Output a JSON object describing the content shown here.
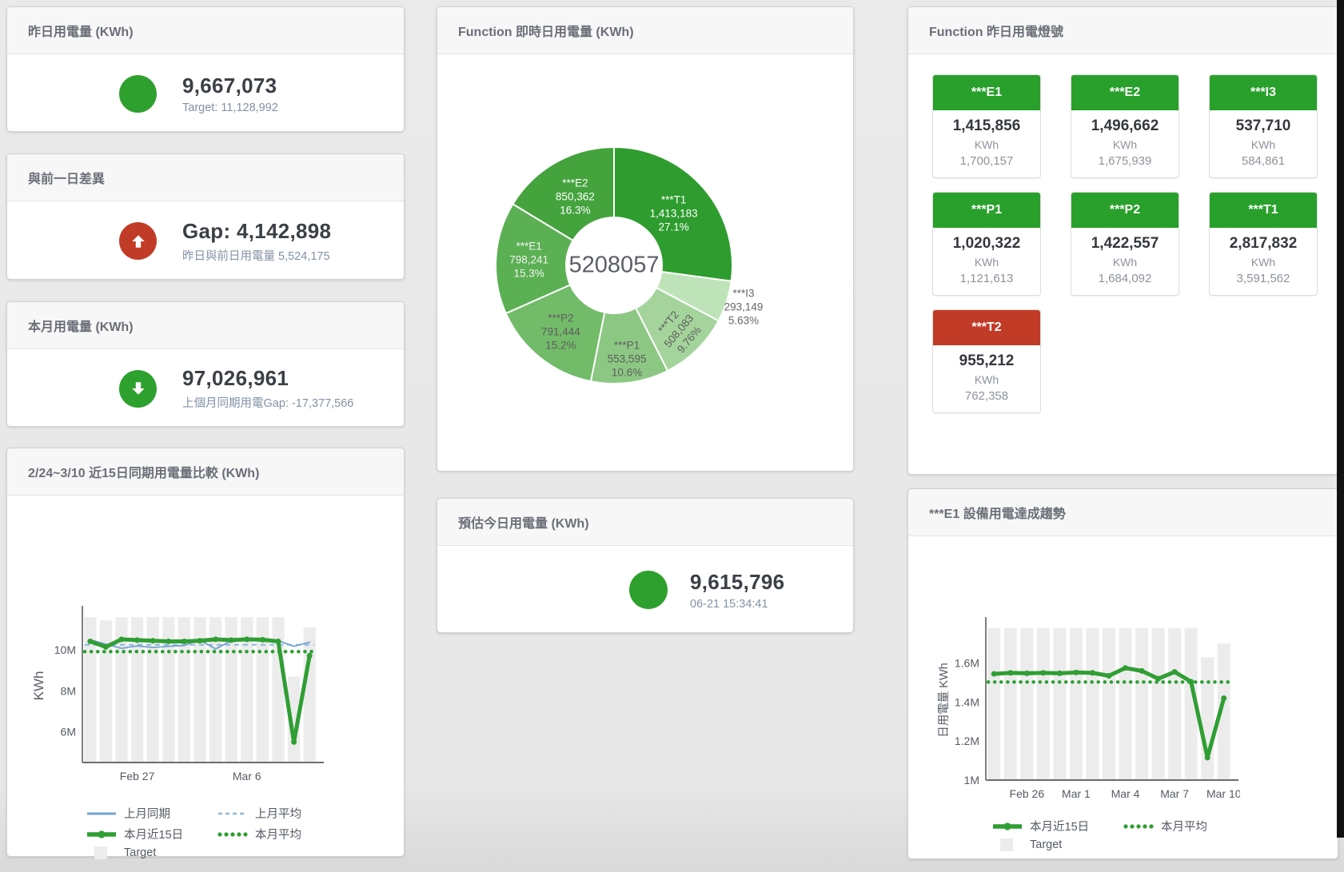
{
  "stat_cards": {
    "yesterday": {
      "title": "昨日用電量 (KWh)",
      "value": "9,667,073",
      "subtitle": "Target: 11,128,992",
      "status_color": "#2da02d"
    },
    "diff": {
      "title": "與前一日差異",
      "value": "Gap: 4,142,898",
      "subtitle": "昨日與前日用電量 5,524,175",
      "status_color": "#c23b27"
    },
    "month": {
      "title": "本月用電量 (KWh)",
      "value": "97,026,961",
      "subtitle": "上個月同期用電Gap: -17,377,566",
      "status_color": "#2da02d"
    },
    "estimate": {
      "title": "預估今日用電量 (KWh)",
      "value": "9,615,796",
      "subtitle": "06-21 15:34:41",
      "status_color": "#2da02d"
    }
  },
  "donut_card": {
    "title": "Function 即時日用電量 (KWh)"
  },
  "lights": {
    "title": "Function 昨日用電燈號",
    "tiles": [
      {
        "name": "***E1",
        "value": "1,415,856",
        "unit": "KWh",
        "target": "1,700,157",
        "color": "#28a02b"
      },
      {
        "name": "***E2",
        "value": "1,496,662",
        "unit": "KWh",
        "target": "1,675,939",
        "color": "#28a02b"
      },
      {
        "name": "***I3",
        "value": "537,710",
        "unit": "KWh",
        "target": "584,861",
        "color": "#28a02b"
      },
      {
        "name": "***P1",
        "value": "1,020,322",
        "unit": "KWh",
        "target": "1,121,613",
        "color": "#28a02b"
      },
      {
        "name": "***P2",
        "value": "1,422,557",
        "unit": "KWh",
        "target": "1,684,092",
        "color": "#28a02b"
      },
      {
        "name": "***T1",
        "value": "2,817,832",
        "unit": "KWh",
        "target": "3,591,562",
        "color": "#28a02b"
      },
      {
        "name": "***T2",
        "value": "955,212",
        "unit": "KWh",
        "target": "762,358",
        "color": "#c23b27"
      }
    ]
  },
  "compare_card": {
    "title": "2/24~3/10 近15日同期用電量比較 (KWh)"
  },
  "trend_card": {
    "title": "***E1 設備用電達成趨勢"
  },
  "chart_data": [
    {
      "type": "pie",
      "title": "Function 即時日用電量 (KWh)",
      "center_total": "5208057",
      "slices": [
        {
          "name": "***T1",
          "value": 1413183,
          "value_str": "1,413,183",
          "pct_str": "27.1%",
          "color": "#2e9c2e",
          "label_color": "#ffffff",
          "lr": 0.67,
          "rotate": 0
        },
        {
          "name": "***I3",
          "value": 293149,
          "value_str": "293,149",
          "pct_str": "5.63%",
          "color": "#bfe3b8",
          "label_color": "#666666",
          "lr": 1.15,
          "rotate": 0
        },
        {
          "name": "***T2",
          "value": 508083,
          "value_str": "508,083",
          "pct_str": "9.76%",
          "color": "#a4d49b",
          "label_color": "#5e5e5e",
          "lr": 0.78,
          "rotate": -50
        },
        {
          "name": "***P1",
          "value": 553595,
          "value_str": "553,595",
          "pct_str": "10.6%",
          "color": "#8cc883",
          "label_color": "#5e5e5e",
          "lr": 0.8,
          "rotate": 0
        },
        {
          "name": "***P2",
          "value": 791444,
          "value_str": "791,444",
          "pct_str": "15.2%",
          "color": "#72bb69",
          "label_color": "#5e5e5e",
          "lr": 0.72,
          "rotate": 0
        },
        {
          "name": "***E1",
          "value": 798241,
          "value_str": "798,241",
          "pct_str": "15.3%",
          "color": "#5cb054",
          "label_color": "#f2f3f2",
          "lr": 0.72,
          "rotate": 0
        },
        {
          "name": "***E2",
          "value": 850362,
          "value_str": "850,362",
          "pct_str": "16.3%",
          "color": "#44a33d",
          "label_color": "#ffffff",
          "lr": 0.67,
          "rotate": 0
        }
      ]
    },
    {
      "type": "line",
      "key": "compare",
      "title": "2/24~3/10 近15日同期用電量比較 (KWh)",
      "n": 15,
      "unit": "M",
      "ylabel": "KWh",
      "ylim": [
        4.5,
        12
      ],
      "yticks": [
        {
          "v": 6,
          "t": "6M"
        },
        {
          "v": 8,
          "t": "8M"
        },
        {
          "v": 10,
          "t": "10M"
        }
      ],
      "xticks": [
        {
          "i": 3,
          "t": "Feb 27"
        },
        {
          "i": 10,
          "t": "Mar 6"
        }
      ],
      "bars": {
        "name": "Target",
        "color": "#ececec",
        "values": [
          11.6,
          11.45,
          11.6,
          11.6,
          11.6,
          11.6,
          11.6,
          11.6,
          11.6,
          11.6,
          11.6,
          11.6,
          11.6,
          8.7,
          11.1
        ]
      },
      "lines": [
        {
          "name": "上月平均",
          "color": "#8bb8de",
          "width": 2,
          "dash": "6 5",
          "const": 10.25
        },
        {
          "name": "本月平均",
          "color": "#2f9e33",
          "width": 4.5,
          "dash": "0.1 8",
          "cap": "round",
          "const": 9.92
        },
        {
          "name": "上月同期",
          "color": "#74a3cc",
          "width": 1.8,
          "values": [
            10.5,
            10.28,
            10.08,
            10.2,
            10.12,
            10.18,
            10.22,
            10.48,
            10.05,
            10.45,
            10.5,
            10.45,
            10.45,
            10.18,
            10.38
          ]
        },
        {
          "name": "本月近15日",
          "color": "#2f9e33",
          "width": 5,
          "dots": true,
          "values": [
            10.42,
            10.15,
            10.52,
            10.48,
            10.45,
            10.42,
            10.42,
            10.45,
            10.52,
            10.48,
            10.52,
            10.5,
            10.42,
            5.5,
            9.72
          ]
        }
      ],
      "legend": [
        [
          {
            "type": "line",
            "color": "#74a3cc",
            "label": "上月同期"
          },
          {
            "type": "dash",
            "color": "#8bb8de",
            "label": "上月平均"
          }
        ],
        [
          {
            "type": "thick",
            "color": "#2f9e33",
            "label": "本月近15日"
          },
          {
            "type": "dots",
            "color": "#2f9e33",
            "label": "本月平均"
          }
        ],
        [
          {
            "type": "square",
            "color": "#ececec",
            "label": "Target"
          }
        ]
      ]
    },
    {
      "type": "line",
      "key": "trend",
      "title": "***E1 設備用電達成趨勢",
      "n": 15,
      "unit": "M",
      "ylabel": "日用電量 KWh",
      "ylim": [
        1,
        1.82
      ],
      "yticks": [
        {
          "v": 1,
          "t": "1M"
        },
        {
          "v": 1.2,
          "t": "1.2M"
        },
        {
          "v": 1.4,
          "t": "1.4M"
        },
        {
          "v": 1.6,
          "t": "1.6M"
        }
      ],
      "xticks": [
        {
          "i": 2,
          "t": "Feb 26"
        },
        {
          "i": 5,
          "t": "Mar 1"
        },
        {
          "i": 8,
          "t": "Mar 4"
        },
        {
          "i": 11,
          "t": "Mar 7"
        },
        {
          "i": 14,
          "t": "Mar 10"
        }
      ],
      "bars": {
        "name": "Target",
        "color": "#ececec",
        "values": [
          1.78,
          1.78,
          1.78,
          1.78,
          1.78,
          1.78,
          1.78,
          1.78,
          1.78,
          1.78,
          1.78,
          1.78,
          1.78,
          1.63,
          1.7
        ]
      },
      "lines": [
        {
          "name": "本月平均",
          "color": "#2f9e33",
          "width": 4.5,
          "dash": "0.1 8",
          "cap": "round",
          "const": 1.503
        },
        {
          "name": "本月近15日",
          "color": "#2f9e33",
          "width": 5,
          "dots": true,
          "values": [
            1.545,
            1.55,
            1.548,
            1.55,
            1.548,
            1.552,
            1.55,
            1.535,
            1.575,
            1.56,
            1.52,
            1.555,
            1.505,
            1.115,
            1.42
          ]
        }
      ],
      "legend": [
        [
          {
            "type": "thick",
            "color": "#2f9e33",
            "label": "本月近15日"
          },
          {
            "type": "dots",
            "color": "#2f9e33",
            "label": "本月平均"
          }
        ],
        [
          {
            "type": "square",
            "color": "#ececec",
            "label": "Target"
          }
        ]
      ]
    }
  ]
}
